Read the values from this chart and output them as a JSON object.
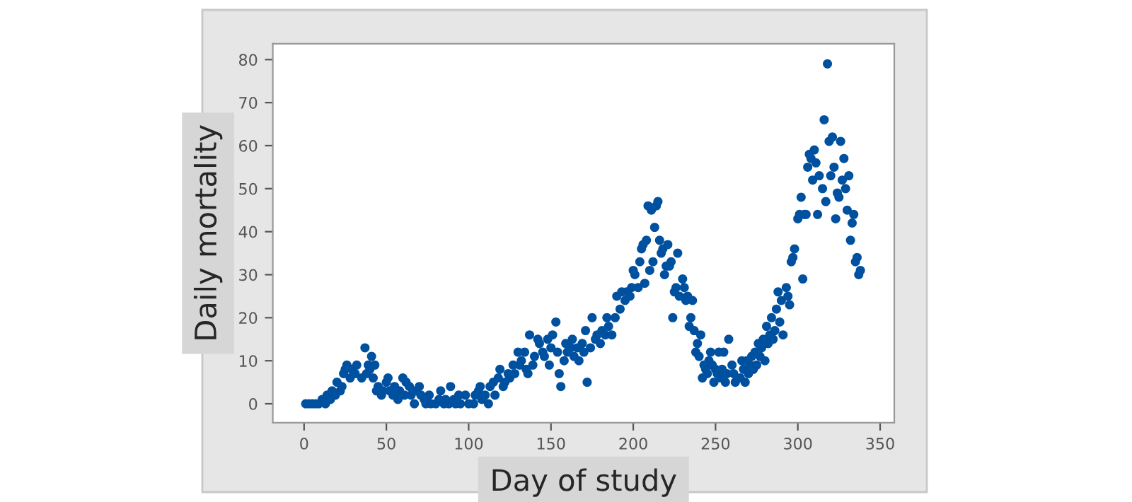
{
  "chart_data": {
    "type": "scatter",
    "xlabel": "Day of study",
    "ylabel": "Daily mortality",
    "xlim": [
      -19,
      358.6
    ],
    "ylim": [
      -4.4,
      83.7
    ],
    "xticks": [
      0,
      50,
      100,
      150,
      200,
      250,
      300,
      350
    ],
    "yticks": [
      0,
      10,
      20,
      30,
      40,
      50,
      60,
      70,
      80
    ],
    "marker": "circle",
    "grid": false,
    "legend": false,
    "series": [
      {
        "color": "#0050a0",
        "x": [
          1,
          3,
          5,
          7,
          9,
          11,
          13,
          14,
          16,
          17,
          19,
          20,
          22,
          23,
          24,
          25,
          26,
          28,
          29,
          31,
          32,
          35,
          37,
          38,
          39,
          40,
          41,
          42,
          43,
          44,
          45,
          47,
          48,
          50,
          51,
          52,
          54,
          55,
          57,
          58,
          60,
          61,
          62,
          64,
          65,
          67,
          68,
          70,
          71,
          73,
          74,
          76,
          77,
          80,
          82,
          83,
          85,
          86,
          88,
          89,
          91,
          92,
          94,
          95,
          98,
          100,
          103,
          104,
          106,
          107,
          108,
          110,
          112,
          113,
          115,
          116,
          118,
          119,
          121,
          122,
          124,
          125,
          127,
          128,
          130,
          131,
          132,
          134,
          135,
          136,
          137,
          139,
          140,
          142,
          143,
          145,
          146,
          148,
          149,
          150,
          151,
          153,
          154,
          155,
          156,
          158,
          159,
          160,
          162,
          163,
          164,
          166,
          167,
          169,
          170,
          171,
          172,
          174,
          175,
          177,
          178,
          180,
          181,
          183,
          184,
          185,
          187,
          189,
          190,
          192,
          193,
          195,
          196,
          198,
          199,
          200,
          201,
          203,
          204,
          205,
          206,
          207,
          208,
          209,
          210,
          211,
          212,
          213,
          214,
          215,
          216,
          217,
          218,
          219,
          220,
          221,
          222,
          223,
          224,
          225,
          226,
          227,
          228,
          230,
          231,
          232,
          233,
          234,
          235,
          236,
          237,
          238,
          239,
          240,
          241,
          242,
          243,
          244,
          245,
          246,
          247,
          248,
          249,
          250,
          251,
          252,
          253,
          254,
          255,
          256,
          257,
          258,
          260,
          261,
          262,
          265,
          266,
          267,
          268,
          269,
          270,
          271,
          272,
          273,
          274,
          275,
          276,
          277,
          278,
          279,
          280,
          281,
          282,
          283,
          284,
          285,
          286,
          287,
          288,
          289,
          290,
          291,
          293,
          294,
          295,
          296,
          297,
          298,
          300,
          301,
          302,
          303,
          304,
          305,
          306,
          307,
          308,
          309,
          310,
          311,
          312,
          313,
          315,
          316,
          317,
          318,
          319,
          320,
          321,
          322,
          323,
          324,
          325,
          326,
          327,
          328,
          329,
          330,
          331,
          332,
          333,
          334,
          335,
          336,
          337,
          338
        ],
        "values": [
          0,
          0,
          0,
          0,
          0,
          1,
          0,
          2,
          1,
          3,
          2,
          5,
          3,
          4,
          7,
          8,
          9,
          6,
          8,
          7,
          9,
          6,
          13,
          7,
          9,
          8,
          11,
          6,
          9,
          3,
          4,
          2,
          3,
          5,
          6,
          3,
          2,
          4,
          1,
          3,
          6,
          2,
          5,
          4,
          2,
          0,
          3,
          4,
          2,
          1,
          0,
          2,
          0,
          0,
          1,
          3,
          0,
          1,
          0,
          4,
          1,
          0,
          2,
          0,
          2,
          0,
          0,
          2,
          3,
          4,
          1,
          2,
          0,
          4,
          5,
          2,
          6,
          8,
          4,
          5,
          7,
          6,
          9,
          7,
          12,
          9,
          10,
          12,
          8,
          7,
          16,
          9,
          11,
          15,
          14,
          12,
          11,
          15,
          9,
          13,
          16,
          19,
          12,
          7,
          4,
          10,
          14,
          12,
          13,
          15,
          11,
          13,
          10,
          14,
          12,
          17,
          5,
          13,
          20,
          15,
          16,
          14,
          17,
          16,
          20,
          18,
          16,
          20,
          25,
          22,
          26,
          24,
          26,
          25,
          27,
          31,
          30,
          27,
          33,
          36,
          37,
          28,
          38,
          46,
          31,
          45,
          33,
          41,
          46,
          47,
          38,
          35,
          36,
          30,
          32,
          37,
          32,
          33,
          20,
          26,
          27,
          35,
          25,
          29,
          27,
          24,
          25,
          18,
          20,
          24,
          17,
          12,
          14,
          11,
          16,
          6,
          9,
          8,
          7,
          10,
          12,
          9,
          5,
          8,
          7,
          12,
          6,
          8,
          12,
          5,
          7,
          15,
          9,
          7,
          5,
          6,
          10,
          8,
          5,
          10,
          7,
          9,
          11,
          8,
          12,
          9,
          14,
          11,
          13,
          15,
          10,
          18,
          14,
          16,
          20,
          15,
          17,
          22,
          26,
          19,
          24,
          16,
          27,
          25,
          23,
          33,
          34,
          36,
          43,
          44,
          48,
          29,
          44,
          44,
          55,
          58,
          57,
          52,
          59,
          56,
          44,
          53,
          50,
          66,
          47,
          79,
          61,
          53,
          62,
          55,
          43,
          49,
          48,
          61,
          52,
          57,
          50,
          45,
          53,
          38,
          42,
          44,
          33,
          34,
          30,
          31
        ]
      }
    ]
  }
}
